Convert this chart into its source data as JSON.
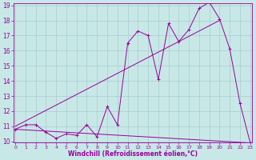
{
  "xlabel": "Windchill (Refroidissement éolien,°C)",
  "bg_color": "#c8e8e8",
  "line_color": "#990099",
  "grid_color": "#aacccc",
  "x_min": 0,
  "x_max": 23,
  "y_min": 10,
  "y_max": 19,
  "data_line": [
    [
      0,
      10.8
    ],
    [
      1,
      11.1
    ],
    [
      2,
      11.1
    ],
    [
      3,
      10.6
    ],
    [
      4,
      10.2
    ],
    [
      5,
      10.5
    ],
    [
      6,
      10.4
    ],
    [
      7,
      11.1
    ],
    [
      8,
      10.3
    ],
    [
      9,
      12.3
    ],
    [
      10,
      11.1
    ],
    [
      11,
      16.5
    ],
    [
      12,
      17.3
    ],
    [
      13,
      17.0
    ],
    [
      14,
      14.1
    ],
    [
      15,
      17.8
    ],
    [
      16,
      16.6
    ],
    [
      17,
      17.4
    ],
    [
      18,
      18.8
    ],
    [
      19,
      19.2
    ],
    [
      20,
      18.1
    ],
    [
      21,
      16.1
    ],
    [
      22,
      12.5
    ],
    [
      23,
      9.9
    ]
  ],
  "straight_line1": [
    [
      0,
      10.8
    ],
    [
      23,
      9.9
    ]
  ],
  "straight_line2": [
    [
      0,
      11.0
    ],
    [
      20,
      18.0
    ]
  ],
  "yticks": [
    10,
    11,
    12,
    13,
    14,
    15,
    16,
    17,
    18,
    19
  ],
  "xticks": [
    0,
    1,
    2,
    3,
    4,
    5,
    6,
    7,
    8,
    9,
    10,
    11,
    12,
    13,
    14,
    15,
    16,
    17,
    18,
    19,
    20,
    21,
    22,
    23
  ]
}
